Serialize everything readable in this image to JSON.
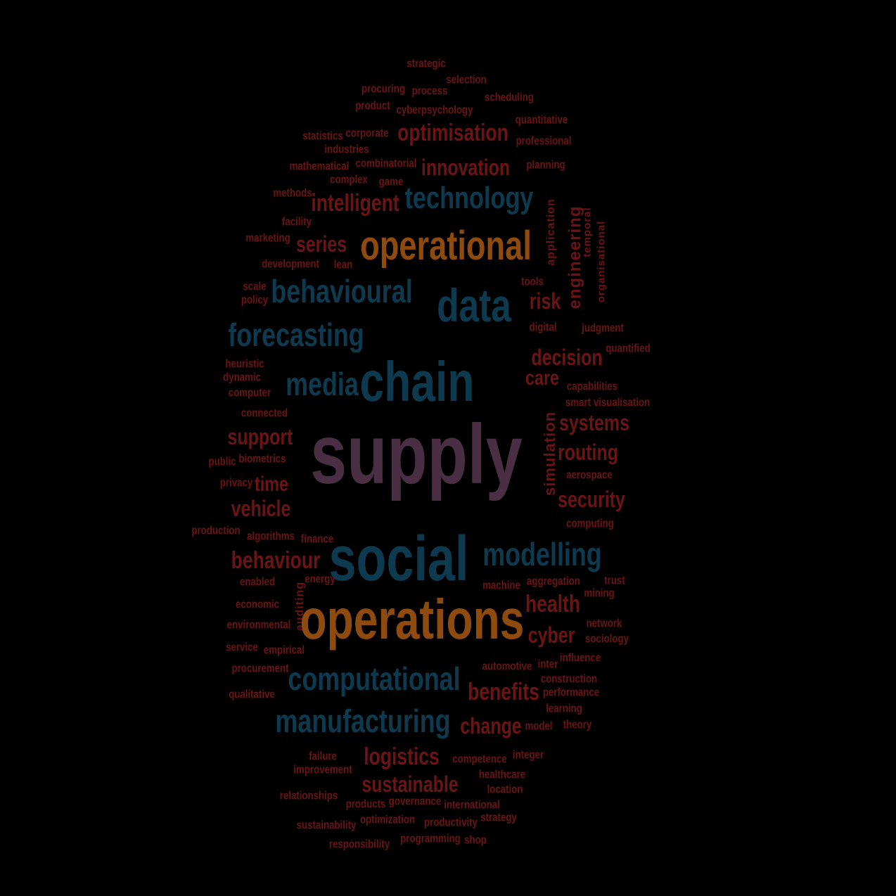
{
  "colors": {
    "background": "#000000",
    "red": "#6b1414",
    "orange": "#8f4a0e",
    "blue": "#0d3a4e",
    "purple": "#4a2f44"
  },
  "words": [
    {
      "text": "strategic",
      "color": "red"
    },
    {
      "text": "selection",
      "color": "red"
    },
    {
      "text": "procuring",
      "color": "red"
    },
    {
      "text": "process",
      "color": "red"
    },
    {
      "text": "scheduling",
      "color": "red"
    },
    {
      "text": "product",
      "color": "red"
    },
    {
      "text": "cyberpsychology",
      "color": "red"
    },
    {
      "text": "quantitative",
      "color": "red"
    },
    {
      "text": "statistics",
      "color": "red"
    },
    {
      "text": "corporate",
      "color": "red"
    },
    {
      "text": "optimisation",
      "color": "red"
    },
    {
      "text": "professional",
      "color": "red"
    },
    {
      "text": "industries",
      "color": "red"
    },
    {
      "text": "mathematical",
      "color": "red"
    },
    {
      "text": "combinatorial",
      "color": "red"
    },
    {
      "text": "innovation",
      "color": "red"
    },
    {
      "text": "planning",
      "color": "red"
    },
    {
      "text": "complex",
      "color": "red"
    },
    {
      "text": "game",
      "color": "red"
    },
    {
      "text": "methods",
      "color": "red"
    },
    {
      "text": "intelligent",
      "color": "red"
    },
    {
      "text": "technology",
      "color": "blue"
    },
    {
      "text": "engineering",
      "color": "red"
    },
    {
      "text": "application",
      "color": "red"
    },
    {
      "text": "temporal",
      "color": "red"
    },
    {
      "text": "organisational",
      "color": "red"
    },
    {
      "text": "facility",
      "color": "red"
    },
    {
      "text": "marketing",
      "color": "red"
    },
    {
      "text": "series",
      "color": "red"
    },
    {
      "text": "operational",
      "color": "orange"
    },
    {
      "text": "development",
      "color": "red"
    },
    {
      "text": "lean",
      "color": "red"
    },
    {
      "text": "scale",
      "color": "red"
    },
    {
      "text": "policy",
      "color": "red"
    },
    {
      "text": "behavioural",
      "color": "blue"
    },
    {
      "text": "data",
      "color": "blue"
    },
    {
      "text": "tools",
      "color": "red"
    },
    {
      "text": "risk",
      "color": "red"
    },
    {
      "text": "forecasting",
      "color": "blue"
    },
    {
      "text": "digital",
      "color": "red"
    },
    {
      "text": "judgment",
      "color": "red"
    },
    {
      "text": "quantified",
      "color": "red"
    },
    {
      "text": "decision",
      "color": "red"
    },
    {
      "text": "heuristic",
      "color": "red"
    },
    {
      "text": "dynamic",
      "color": "red"
    },
    {
      "text": "media",
      "color": "blue"
    },
    {
      "text": "chain",
      "color": "blue"
    },
    {
      "text": "care",
      "color": "red"
    },
    {
      "text": "computer",
      "color": "red"
    },
    {
      "text": "capabilities",
      "color": "red"
    },
    {
      "text": "smart",
      "color": "red"
    },
    {
      "text": "visualisation",
      "color": "red"
    },
    {
      "text": "connected",
      "color": "red"
    },
    {
      "text": "simulation",
      "color": "red"
    },
    {
      "text": "systems",
      "color": "red"
    },
    {
      "text": "support",
      "color": "red"
    },
    {
      "text": "supply",
      "color": "purple"
    },
    {
      "text": "routing",
      "color": "red"
    },
    {
      "text": "public",
      "color": "red"
    },
    {
      "text": "biometrics",
      "color": "red"
    },
    {
      "text": "aerospace",
      "color": "red"
    },
    {
      "text": "privacy",
      "color": "red"
    },
    {
      "text": "time",
      "color": "red"
    },
    {
      "text": "security",
      "color": "red"
    },
    {
      "text": "vehicle",
      "color": "red"
    },
    {
      "text": "computing",
      "color": "red"
    },
    {
      "text": "production",
      "color": "red"
    },
    {
      "text": "algorithms",
      "color": "red"
    },
    {
      "text": "finance",
      "color": "red"
    },
    {
      "text": "modelling",
      "color": "blue"
    },
    {
      "text": "social",
      "color": "blue"
    },
    {
      "text": "behaviour",
      "color": "red"
    },
    {
      "text": "enabled",
      "color": "red"
    },
    {
      "text": "auditing",
      "color": "red"
    },
    {
      "text": "energy",
      "color": "red"
    },
    {
      "text": "machine",
      "color": "red"
    },
    {
      "text": "aggregation",
      "color": "red"
    },
    {
      "text": "trust",
      "color": "red"
    },
    {
      "text": "mining",
      "color": "red"
    },
    {
      "text": "economic",
      "color": "red"
    },
    {
      "text": "health",
      "color": "red"
    },
    {
      "text": "operations",
      "color": "orange"
    },
    {
      "text": "environmental",
      "color": "red"
    },
    {
      "text": "network",
      "color": "red"
    },
    {
      "text": "cyber",
      "color": "red"
    },
    {
      "text": "sociology",
      "color": "red"
    },
    {
      "text": "service",
      "color": "red"
    },
    {
      "text": "empirical",
      "color": "red"
    },
    {
      "text": "inter",
      "color": "red"
    },
    {
      "text": "influence",
      "color": "red"
    },
    {
      "text": "automotive",
      "color": "red"
    },
    {
      "text": "procurement",
      "color": "red"
    },
    {
      "text": "construction",
      "color": "red"
    },
    {
      "text": "computational",
      "color": "blue"
    },
    {
      "text": "performance",
      "color": "red"
    },
    {
      "text": "qualitative",
      "color": "red"
    },
    {
      "text": "benefits",
      "color": "red"
    },
    {
      "text": "learning",
      "color": "red"
    },
    {
      "text": "manufacturing",
      "color": "blue"
    },
    {
      "text": "change",
      "color": "red"
    },
    {
      "text": "model",
      "color": "red"
    },
    {
      "text": "theory",
      "color": "red"
    },
    {
      "text": "failure",
      "color": "red"
    },
    {
      "text": "logistics",
      "color": "red"
    },
    {
      "text": "competence",
      "color": "red"
    },
    {
      "text": "integer",
      "color": "red"
    },
    {
      "text": "improvement",
      "color": "red"
    },
    {
      "text": "healthcare",
      "color": "red"
    },
    {
      "text": "sustainable",
      "color": "red"
    },
    {
      "text": "location",
      "color": "red"
    },
    {
      "text": "relationships",
      "color": "red"
    },
    {
      "text": "products",
      "color": "red"
    },
    {
      "text": "governance",
      "color": "red"
    },
    {
      "text": "international",
      "color": "red"
    },
    {
      "text": "strategy",
      "color": "red"
    },
    {
      "text": "sustainability",
      "color": "red"
    },
    {
      "text": "optimization",
      "color": "red"
    },
    {
      "text": "productivity",
      "color": "red"
    },
    {
      "text": "programming",
      "color": "red"
    },
    {
      "text": "shop",
      "color": "red"
    },
    {
      "text": "responsibility",
      "color": "red"
    }
  ]
}
